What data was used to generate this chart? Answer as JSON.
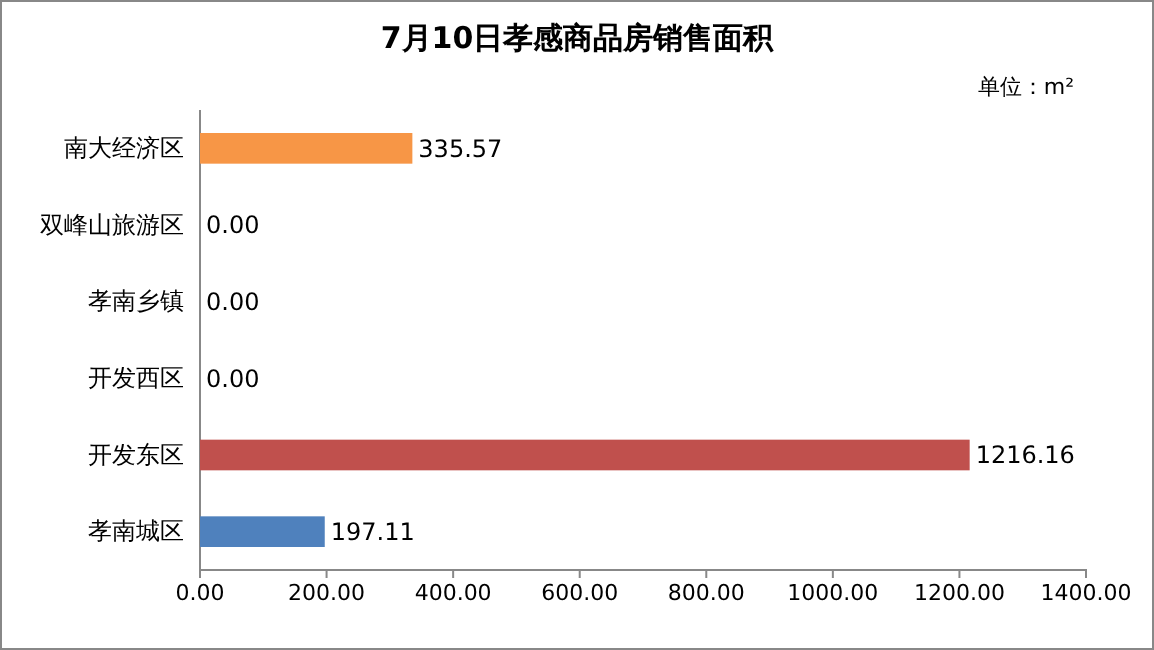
{
  "chart_data": {
    "type": "bar",
    "orientation": "horizontal",
    "title": "7月10日孝感商品房销售面积",
    "subtitle": "单位：m²",
    "categories": [
      "南大经济区",
      "双峰山旅游区",
      "孝南乡镇",
      "开发西区",
      "开发东区",
      "孝南城区"
    ],
    "values": [
      335.57,
      0,
      0,
      0,
      1216.16,
      197.11
    ],
    "colors": [
      "#f79646",
      "#4f81bd",
      "#4f81bd",
      "#4f81bd",
      "#c0504d",
      "#4f81bd"
    ],
    "value_labels": [
      "335.57",
      "0.00",
      "0.00",
      "0.00",
      "1216.16",
      "197.11"
    ],
    "xlim": [
      0,
      1400
    ],
    "xticks": [
      {
        "value": 0,
        "label": "0.00"
      },
      {
        "value": 200,
        "label": "200.00"
      },
      {
        "value": 400,
        "label": "400.00"
      },
      {
        "value": 600,
        "label": "600.00"
      },
      {
        "value": 800,
        "label": "800.00"
      },
      {
        "value": 1000,
        "label": "1000.00"
      },
      {
        "value": 1200,
        "label": "1200.00"
      },
      {
        "value": 1400,
        "label": "1400.00"
      }
    ],
    "grid": false
  }
}
